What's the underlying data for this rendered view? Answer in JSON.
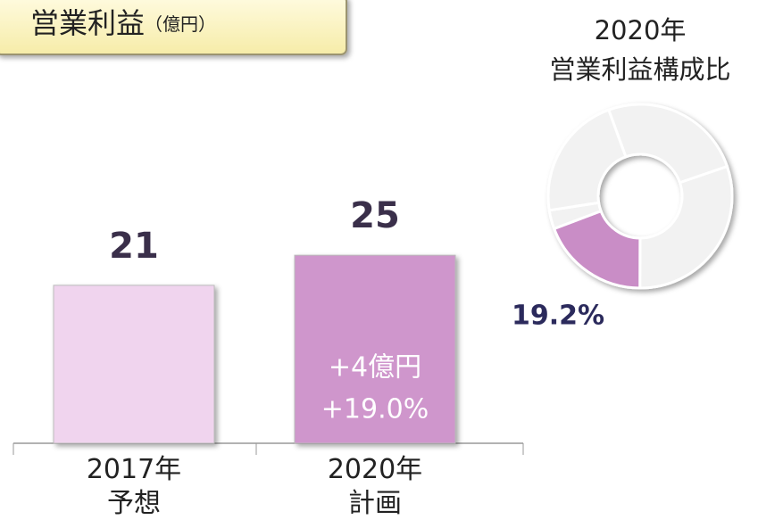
{
  "chart_data": [
    {
      "type": "bar",
      "title": "営業利益",
      "unit": "（億円）",
      "categories": [
        "2017年\n予想",
        "2020年\n計画"
      ],
      "values": [
        21,
        25
      ],
      "colors": [
        "#f0d4ee",
        "#cf96cc"
      ],
      "ylim": [
        0,
        30
      ],
      "annotations": [
        "+4億円",
        "+19.0%"
      ]
    },
    {
      "type": "donut",
      "title": "2020年\n営業利益構成比",
      "values": [
        25.3,
        30.3,
        19.2,
        3.3,
        21.9
      ],
      "value_labels": [
        null,
        null,
        "19.2%",
        null,
        null
      ],
      "colors": [
        "#f2f2f2",
        "#f2f2f2",
        "#c98dc6",
        "#f2f2f2",
        "#f2f2f2"
      ]
    }
  ]
}
